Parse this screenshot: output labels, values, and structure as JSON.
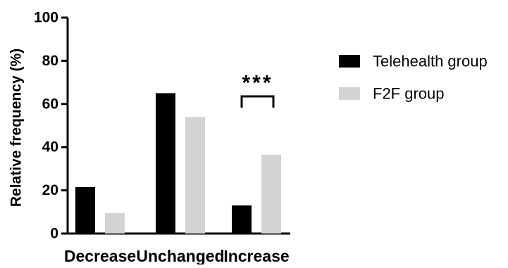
{
  "chart_data": {
    "type": "bar",
    "ylabel": "Relative frequency (%)",
    "ylim": [
      0,
      100
    ],
    "yticks": [
      0,
      20,
      40,
      60,
      80,
      100
    ],
    "categories": [
      "Decrease",
      "Unchanged",
      "Increase"
    ],
    "series": [
      {
        "name": "Telehealth group",
        "values": [
          21.5,
          65,
          13
        ],
        "color": "#000000"
      },
      {
        "name": "F2F group",
        "values": [
          9.5,
          54,
          36.5
        ],
        "color": "#d3d3d3"
      }
    ],
    "annotations": [
      {
        "text": "***",
        "category": "Increase",
        "type": "significance-bracket"
      }
    ],
    "legend_position": "right",
    "grid": false
  }
}
